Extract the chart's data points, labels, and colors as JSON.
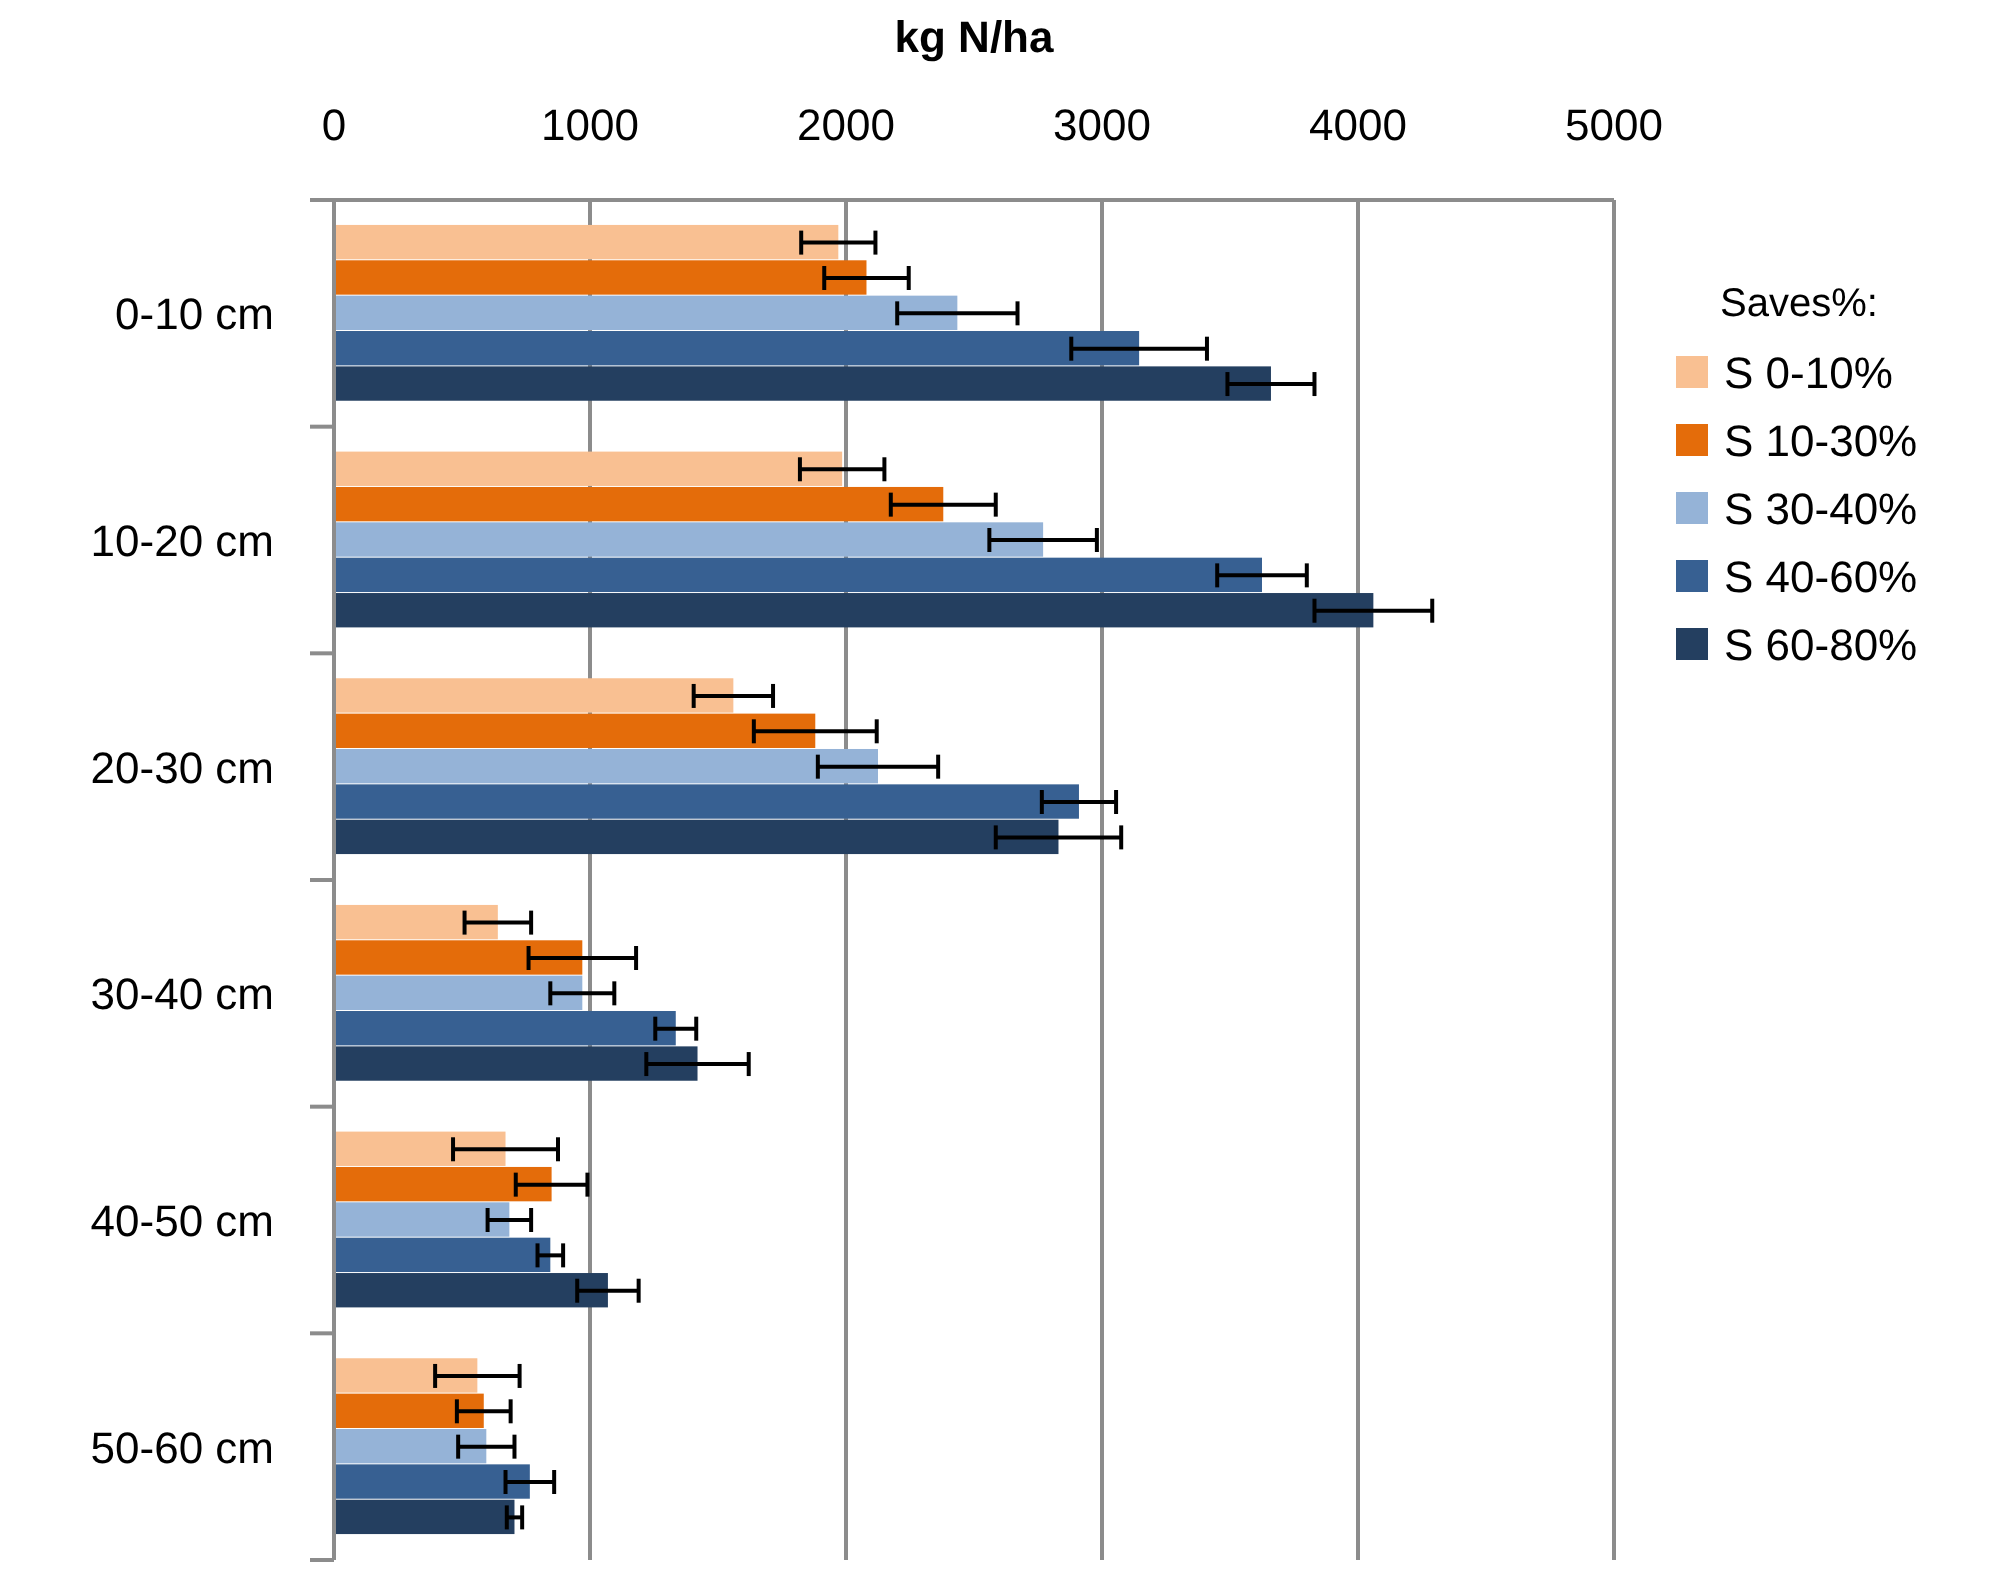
{
  "chart_data": {
    "type": "bar",
    "orientation": "horizontal",
    "xlabel": "kg N/ha",
    "legend_title": "Saves%:",
    "legend": "right",
    "grid": "x",
    "categories": [
      "0-10 cm",
      "10-20 cm",
      "20-30 cm",
      "30-40 cm",
      "40-50 cm",
      "50-60 cm"
    ],
    "xlim": [
      0,
      5000
    ],
    "xticks": [
      0,
      1000,
      2000,
      3000,
      4000,
      5000
    ],
    "series": [
      {
        "name": "S 0-10%",
        "color": "#f9c092",
        "values": [
          1970,
          1985,
          1560,
          640,
          670,
          560
        ],
        "errors": [
          145,
          165,
          155,
          130,
          205,
          165
        ]
      },
      {
        "name": "S 10-30%",
        "color": "#e46c0a",
        "values": [
          2080,
          2380,
          1880,
          970,
          850,
          585
        ],
        "errors": [
          165,
          205,
          240,
          210,
          140,
          105
        ]
      },
      {
        "name": "S 30-40%",
        "color": "#95b3d7",
        "values": [
          2435,
          2770,
          2125,
          970,
          685,
          595
        ],
        "errors": [
          235,
          210,
          235,
          125,
          85,
          110
        ]
      },
      {
        "name": "S 40-60%",
        "color": "#376092",
        "values": [
          3145,
          3625,
          2910,
          1335,
          845,
          765
        ],
        "errors": [
          265,
          175,
          145,
          80,
          50,
          95
        ]
      },
      {
        "name": "S 60-80%",
        "color": "#243f60",
        "values": [
          3660,
          4060,
          2830,
          1420,
          1070,
          705
        ],
        "errors": [
          170,
          230,
          245,
          200,
          120,
          30
        ]
      }
    ]
  }
}
